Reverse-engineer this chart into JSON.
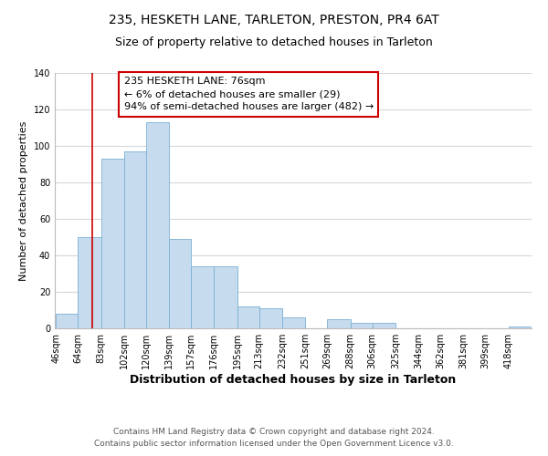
{
  "title": "235, HESKETH LANE, TARLETON, PRESTON, PR4 6AT",
  "subtitle": "Size of property relative to detached houses in Tarleton",
  "xlabel": "Distribution of detached houses by size in Tarleton",
  "ylabel": "Number of detached properties",
  "bin_edges": [
    46,
    64,
    83,
    102,
    120,
    139,
    157,
    176,
    195,
    213,
    232,
    251,
    269,
    288,
    306,
    325,
    344,
    362,
    381,
    399,
    418
  ],
  "bar_heights": [
    8,
    50,
    93,
    97,
    113,
    49,
    34,
    34,
    12,
    11,
    6,
    0,
    5,
    3,
    3,
    0,
    0,
    0,
    0,
    0,
    1
  ],
  "bar_color": "#c6dcee",
  "bar_edgecolor": "#7aafd4",
  "ylim": [
    0,
    140
  ],
  "yticks": [
    0,
    20,
    40,
    60,
    80,
    100,
    120,
    140
  ],
  "vline_x": 76,
  "vline_color": "#cc0000",
  "annotation_title": "235 HESKETH LANE: 76sqm",
  "annotation_line1": "← 6% of detached houses are smaller (29)",
  "annotation_line2": "94% of semi-detached houses are larger (482) →",
  "annotation_box_color": "#ffffff",
  "annotation_box_edgecolor": "#cc0000",
  "footer_line1": "Contains HM Land Registry data © Crown copyright and database right 2024.",
  "footer_line2": "Contains public sector information licensed under the Open Government Licence v3.0.",
  "background_color": "#ffffff",
  "grid_color": "#d8d8d8",
  "title_fontsize": 10,
  "subtitle_fontsize": 9,
  "xlabel_fontsize": 9,
  "ylabel_fontsize": 8,
  "tick_fontsize": 7,
  "footer_fontsize": 6.5,
  "annotation_fontsize": 8
}
